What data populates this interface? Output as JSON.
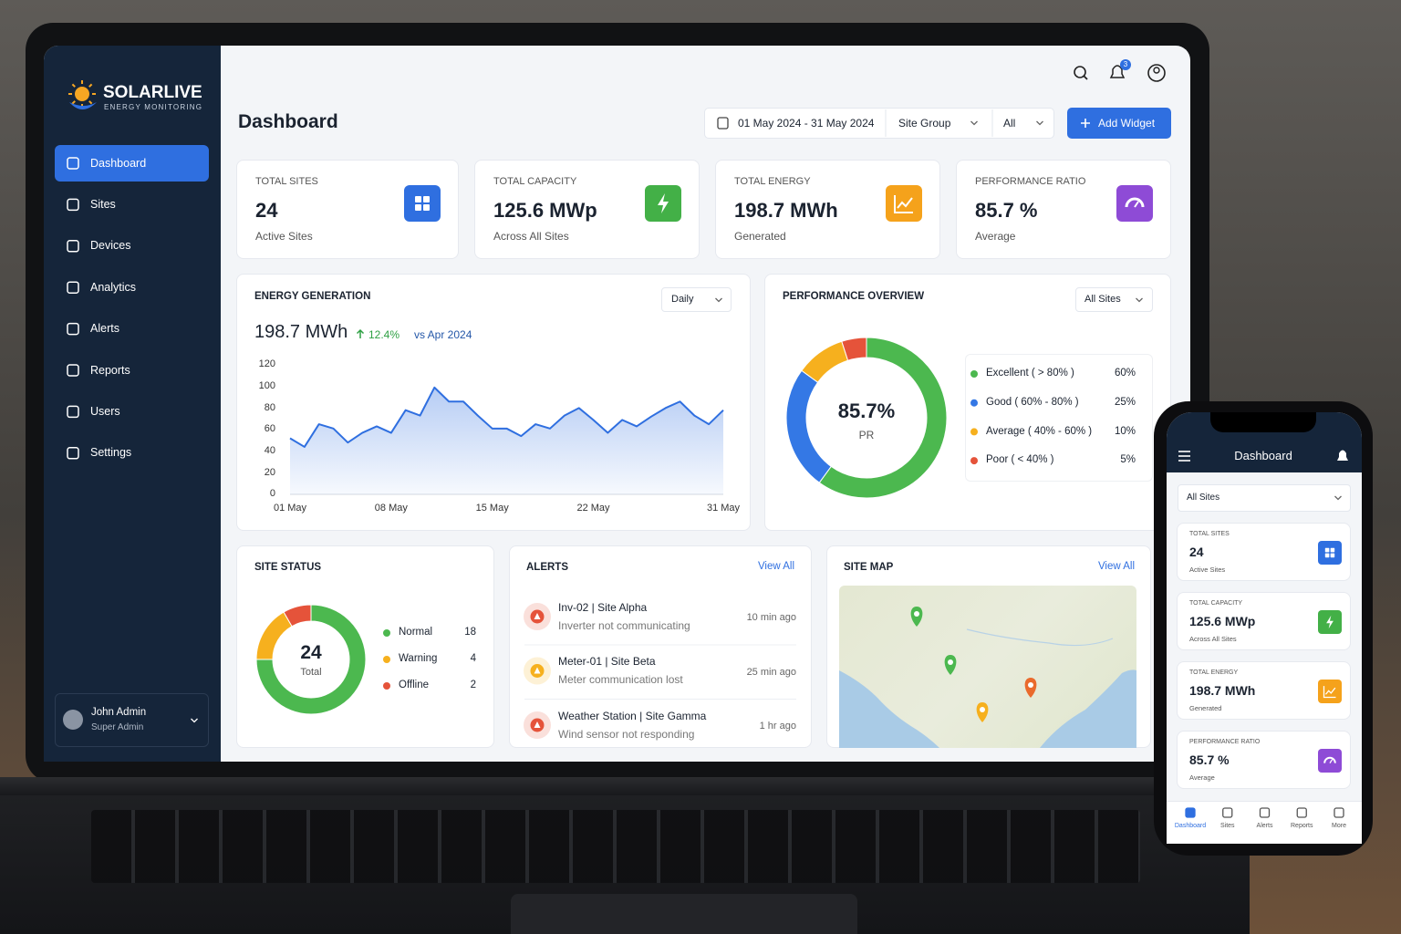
{
  "brand": {
    "name": "SOLARLIVE",
    "tagline": "ENERGY MONITORING"
  },
  "sidebar": {
    "nav": [
      "Dashboard",
      "Sites",
      "Devices",
      "Analytics",
      "Alerts",
      "Reports",
      "Users",
      "Settings"
    ],
    "active": 0,
    "user": {
      "name": "John Admin",
      "role": "Super Admin"
    }
  },
  "header": {
    "notifications": "3",
    "title": "Dashboard",
    "date_range": "01 May 2024 - 31 May 2024",
    "site_group": "Site Group",
    "site_group_value": "All",
    "add_widget": "Add Widget"
  },
  "kpis": [
    {
      "label": "TOTAL SITES",
      "value": "24",
      "sub": "Active Sites",
      "color": "#2f6fe0"
    },
    {
      "label": "TOTAL CAPACITY",
      "value": "125.6 MWp",
      "sub": "Across All Sites",
      "color": "#43b047"
    },
    {
      "label": "TOTAL ENERGY",
      "value": "198.7 MWh",
      "sub": "Generated",
      "color": "#f5a21b"
    },
    {
      "label": "PERFORMANCE RATIO",
      "value": "85.7 %",
      "sub": "Average",
      "color": "#8e4bd6"
    }
  ],
  "energy_generation": {
    "title": "ENERGY GENERATION",
    "period": "Daily",
    "total": "198.7 MWh",
    "change": "12.4%",
    "comparison": "vs Apr 2024",
    "chart": {
      "type": "area",
      "color": "#2f6fe0",
      "categories": [
        "01 May",
        null,
        null,
        null,
        null,
        null,
        null,
        "08 May",
        null,
        null,
        null,
        null,
        null,
        null,
        "15 May",
        null,
        null,
        null,
        null,
        null,
        null,
        "22 May",
        null,
        null,
        null,
        null,
        null,
        null,
        null,
        null,
        "31 May"
      ],
      "values": [
        52,
        44,
        65,
        61,
        48,
        57,
        63,
        57,
        78,
        73,
        99,
        86,
        86,
        73,
        61,
        61,
        54,
        65,
        61,
        73,
        80,
        69,
        57,
        69,
        63,
        72,
        80,
        86,
        73,
        65,
        78
      ],
      "ylim": [
        0,
        120
      ],
      "yticks": [
        0,
        20,
        40,
        60,
        80,
        100,
        120
      ]
    }
  },
  "performance_overview": {
    "title": "PERFORMANCE OVERVIEW",
    "filter": "All Sites",
    "center_value": "85.7%",
    "center_label": "PR",
    "chart": {
      "type": "donut",
      "categories": [
        "Excellent ( > 80% )",
        "Good ( 60% - 80% )",
        "Average ( 40% - 60% )",
        "Poor ( < 40% )"
      ],
      "values": [
        60,
        25,
        10,
        5
      ],
      "value_labels": [
        "60%",
        "25%",
        "10%",
        "5%"
      ],
      "colors": [
        "#4cb84f",
        "#3478e5",
        "#f6b01e",
        "#e5533a"
      ]
    }
  },
  "site_status": {
    "title": "SITE STATUS",
    "center_value": "24",
    "center_label": "Total",
    "chart": {
      "type": "donut",
      "categories": [
        "Normal",
        "Warning",
        "Offline"
      ],
      "values": [
        18,
        4,
        2
      ],
      "colors": [
        "#4cb84f",
        "#f6b01e",
        "#e5533a"
      ]
    }
  },
  "alerts": {
    "title": "ALERTS",
    "view_all": "View All",
    "items": [
      {
        "title": "Inv-02 | Site Alpha",
        "message": "Inverter not communicating",
        "time": "10 min ago",
        "color": "#e5533a"
      },
      {
        "title": "Meter-01 | Site Beta",
        "message": "Meter communication lost",
        "time": "25 min ago",
        "color": "#f6b01e"
      },
      {
        "title": "Weather Station | Site Gamma",
        "message": "Wind sensor not responding",
        "time": "1 hr ago",
        "color": "#e5533a"
      }
    ]
  },
  "site_map": {
    "title": "SITE MAP",
    "view_all": "View All"
  },
  "phone": {
    "title": "Dashboard",
    "filter": "All Sites",
    "bottom_nav": [
      "Dashboard",
      "Sites",
      "Alerts",
      "Reports",
      "More"
    ],
    "active": 0
  }
}
